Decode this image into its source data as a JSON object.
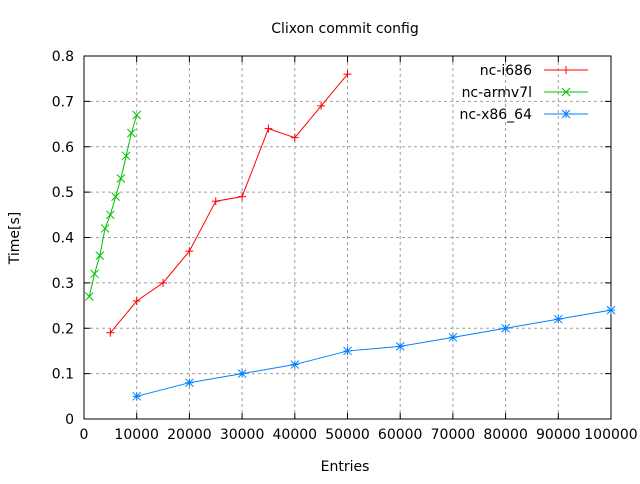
{
  "chart_data": {
    "type": "line",
    "title": "Clixon commit config",
    "xlabel": "Entries",
    "ylabel": "Time[s]",
    "xlim": [
      0,
      100000
    ],
    "ylim": [
      0,
      0.8
    ],
    "xticks": [
      0,
      10000,
      20000,
      30000,
      40000,
      50000,
      60000,
      70000,
      80000,
      90000,
      100000
    ],
    "yticks": [
      0,
      0.1,
      0.2,
      0.3,
      0.4,
      0.5,
      0.6,
      0.7,
      0.8
    ],
    "grid": true,
    "legend_position": "top-right",
    "series": [
      {
        "name": "nc-i686",
        "color": "#ff0000",
        "marker": "plus",
        "x": [
          5000,
          10000,
          15000,
          20000,
          25000,
          30000,
          35000,
          40000,
          45000,
          50000
        ],
        "y": [
          0.19,
          0.26,
          0.3,
          0.37,
          0.48,
          0.49,
          0.64,
          0.62,
          0.69,
          0.76
        ]
      },
      {
        "name": "nc-armv7l",
        "color": "#00c000",
        "marker": "cross",
        "x": [
          1000,
          2000,
          3000,
          4000,
          5000,
          6000,
          7000,
          8000,
          9000,
          10000
        ],
        "y": [
          0.27,
          0.32,
          0.36,
          0.42,
          0.45,
          0.49,
          0.53,
          0.58,
          0.63,
          0.67
        ]
      },
      {
        "name": "nc-x86_64",
        "color": "#0080ff",
        "marker": "star",
        "x": [
          10000,
          20000,
          30000,
          40000,
          50000,
          60000,
          70000,
          80000,
          90000,
          100000
        ],
        "y": [
          0.05,
          0.08,
          0.1,
          0.12,
          0.15,
          0.16,
          0.18,
          0.2,
          0.22,
          0.24
        ]
      }
    ]
  }
}
